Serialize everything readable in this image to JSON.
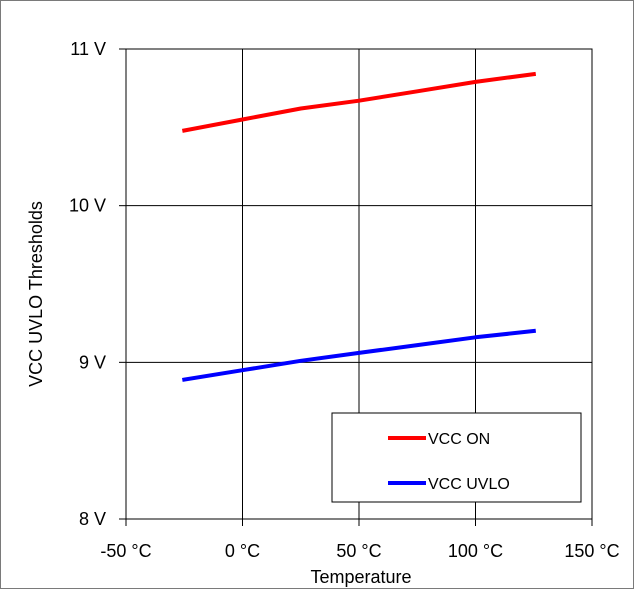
{
  "chart_data": {
    "type": "line",
    "title": "",
    "xlabel": "Temperature",
    "ylabel": "VCC UVLO Thresholds",
    "xlim": [
      -50,
      150
    ],
    "ylim": [
      8,
      11
    ],
    "x_ticks": [
      -50,
      0,
      50,
      100,
      150
    ],
    "x_tick_labels": [
      "-50 °C",
      "0 °C",
      "50 °C",
      "100 °C",
      "150 °C"
    ],
    "y_ticks": [
      8,
      9,
      10,
      11
    ],
    "y_tick_labels": [
      "8 V",
      "9 V",
      "10 V",
      "11 V"
    ],
    "grid": true,
    "legend_position": "bottom-right",
    "series": [
      {
        "name": "VCC ON",
        "color": "#ff0000",
        "x": [
          -25,
          0,
          25,
          50,
          75,
          100,
          125
        ],
        "values": [
          10.48,
          10.55,
          10.62,
          10.67,
          10.73,
          10.79,
          10.84
        ]
      },
      {
        "name": "VCC UVLO",
        "color": "#0000ff",
        "x": [
          -25,
          0,
          25,
          50,
          75,
          100,
          125
        ],
        "values": [
          8.89,
          8.95,
          9.01,
          9.06,
          9.11,
          9.16,
          9.2
        ]
      }
    ]
  }
}
